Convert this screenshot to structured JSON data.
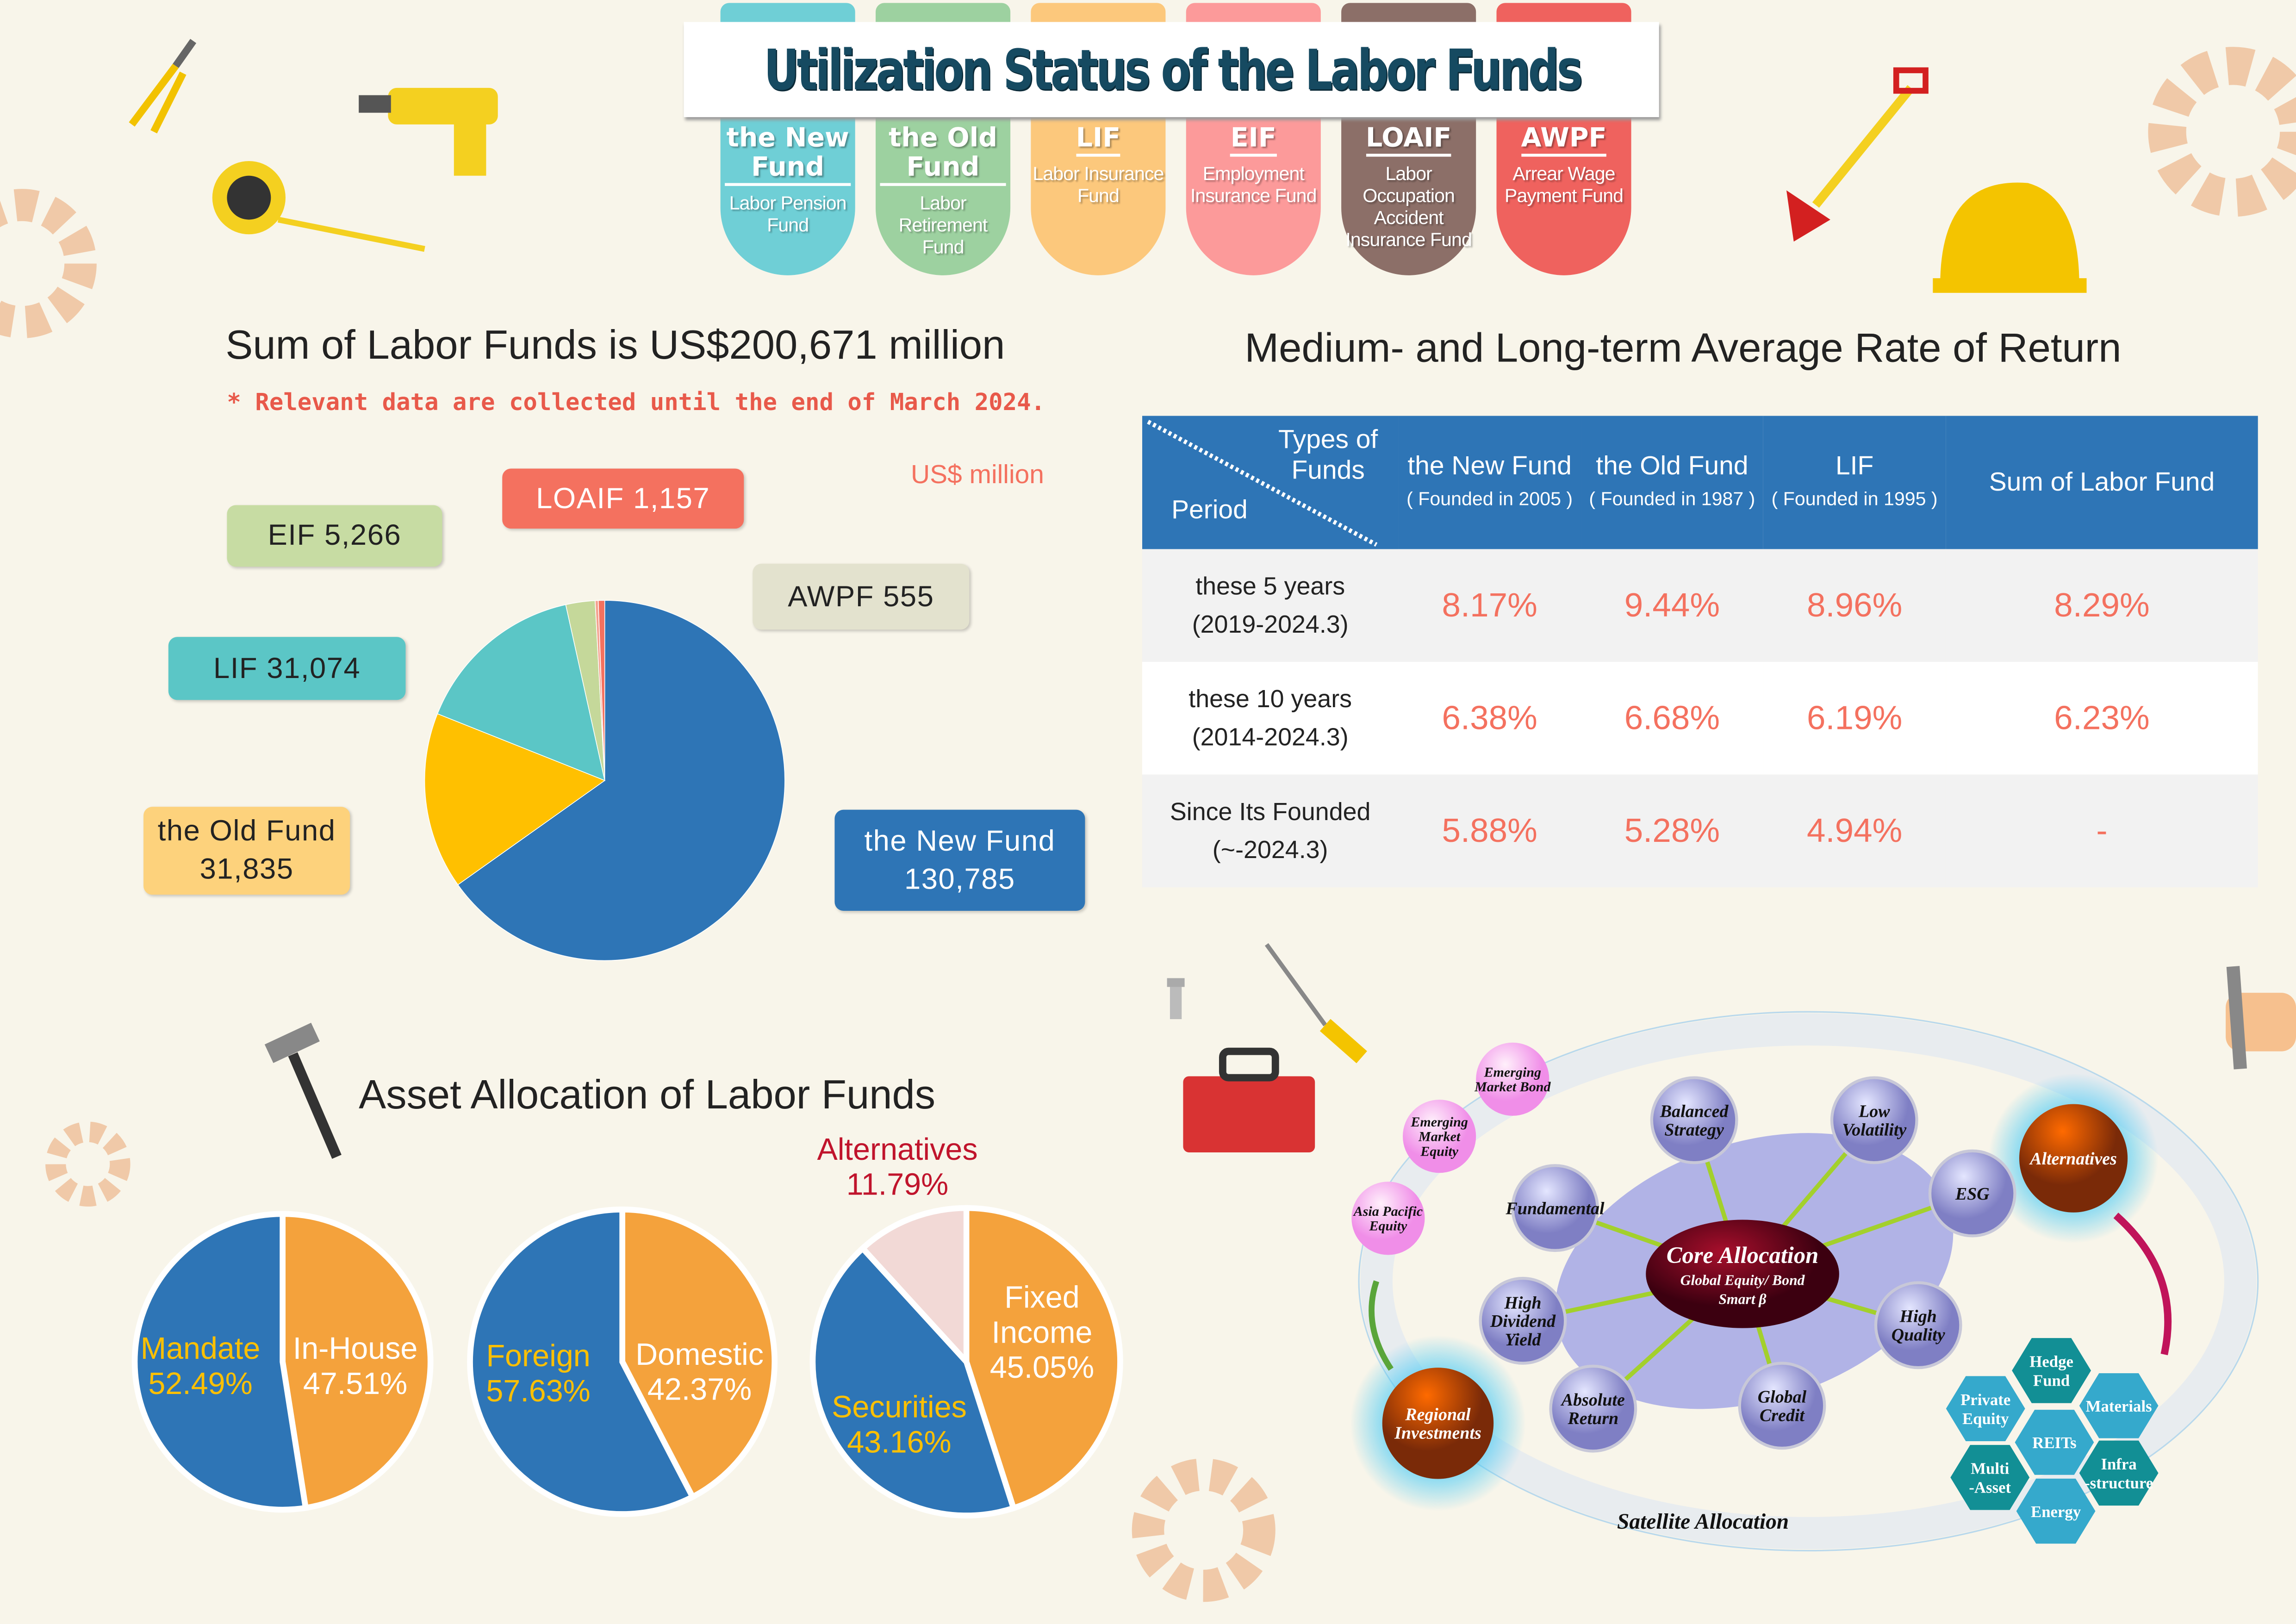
{
  "title": "Utilization Status of the Labor Funds",
  "tabs": [
    {
      "abbr": "the New Fund",
      "full": "Labor Pension Fund",
      "color": "#6fcfd6"
    },
    {
      "abbr": "the Old Fund",
      "full": "Labor Retirement Fund",
      "color": "#9dd1a0"
    },
    {
      "abbr": "LIF",
      "full": "Labor Insurance Fund",
      "color": "#fcc87c"
    },
    {
      "abbr": "EIF",
      "full": "Employment Insurance Fund",
      "color": "#fc9a9a"
    },
    {
      "abbr": "LOAIF",
      "full": "Labor Occupation Accident Insurance Fund",
      "color": "#8c6f68"
    },
    {
      "abbr": "AWPF",
      "full": "Arrear Wage Payment Fund",
      "color": "#ef625e"
    }
  ],
  "sum": {
    "title": "Sum of Labor Funds is US$200,671 million",
    "note": "* Relevant data are collected until the end of March 2024.",
    "unit": "US$ million"
  },
  "returns": {
    "title": "Medium- and Long-term Average Rate of Return",
    "corner_top": "Types of Funds",
    "corner_bottom": "Period",
    "columns": [
      {
        "name": "the New Fund",
        "sub": "( Founded in 2005 )"
      },
      {
        "name": "the Old Fund",
        "sub": "( Founded in 1987 )"
      },
      {
        "name": "LIF",
        "sub": "( Founded in 1995 )"
      },
      {
        "name": "Sum of Labor Fund",
        "sub": ""
      }
    ],
    "rows": [
      {
        "period": "these 5 years",
        "range": "(2019-2024.3)",
        "values": [
          "8.17%",
          "9.44%",
          "8.96%",
          "8.29%"
        ]
      },
      {
        "period": "these 10 years",
        "range": "(2014-2024.3)",
        "values": [
          "6.38%",
          "6.68%",
          "6.19%",
          "6.23%"
        ]
      },
      {
        "period": "Since Its Founded",
        "range": "(~-2024.3)",
        "values": [
          "5.88%",
          "5.28%",
          "4.94%",
          "-"
        ]
      }
    ]
  },
  "asset": {
    "title": "Asset Allocation of Labor Funds"
  },
  "chart_data": [
    {
      "type": "pie",
      "unit": "US$ million",
      "slices": [
        {
          "label": "the New Fund",
          "value": 130785,
          "display": "the New Fund 130,785",
          "color": "#2e75b6"
        },
        {
          "label": "the Old Fund",
          "value": 31835,
          "display": "the Old Fund 31,835",
          "color": "#ffc000"
        },
        {
          "label": "LIF",
          "value": 31074,
          "display": "LIF 31,074",
          "color": "#5bc6c6"
        },
        {
          "label": "EIF",
          "value": 5266,
          "display": "EIF 5,266",
          "color": "#c5d89a"
        },
        {
          "label": "AWPF",
          "value": 555,
          "display": "AWPF 555",
          "color": "#f4a28f"
        },
        {
          "label": "LOAIF",
          "value": 1157,
          "display": "LOAIF 1,157",
          "color": "#f4715f"
        }
      ]
    },
    {
      "type": "pie",
      "slices": [
        {
          "label": "In-House",
          "value": 47.51,
          "display": "47.51%",
          "color": "#f4a23c"
        },
        {
          "label": "Mandate",
          "value": 52.49,
          "display": "52.49%",
          "color": "#2e75b6"
        }
      ]
    },
    {
      "type": "pie",
      "slices": [
        {
          "label": "Domestic",
          "value": 42.37,
          "display": "42.37%",
          "color": "#f4a23c"
        },
        {
          "label": "Foreign",
          "value": 57.63,
          "display": "57.63%",
          "color": "#2e75b6"
        }
      ]
    },
    {
      "type": "pie",
      "slices": [
        {
          "label": "Fixed Income",
          "value": 45.05,
          "display": "45.05%",
          "color": "#f4a23c"
        },
        {
          "label": "Securities",
          "value": 43.16,
          "display": "43.16%",
          "color": "#2e75b6"
        },
        {
          "label": "Alternatives",
          "value": 11.79,
          "display": "11.79%",
          "color": "#f2d9d6"
        }
      ]
    }
  ],
  "diagram": {
    "core": {
      "title": "Core Allocation",
      "sub1": "Global Equity/ Bond",
      "sub2": "Smart β"
    },
    "core_nodes": [
      "Balanced Strategy",
      "Low Volatility",
      "ESG",
      "Fundamental",
      "High Dividend Yield",
      "High Quality",
      "Absolute Return",
      "Global Credit"
    ],
    "regional_nodes": [
      "Emerging Market Bond",
      "Emerging Market Equity",
      "Asia Pacific Equity"
    ],
    "alternatives": "Alternatives",
    "regional": "Regional Investments",
    "satellite": "Satellite Allocation",
    "alt_hexes": [
      "Hedge Fund",
      "Private Equity",
      "Materials",
      "REITs",
      "Multi -Asset",
      "Infra -structure",
      "Energy"
    ]
  }
}
